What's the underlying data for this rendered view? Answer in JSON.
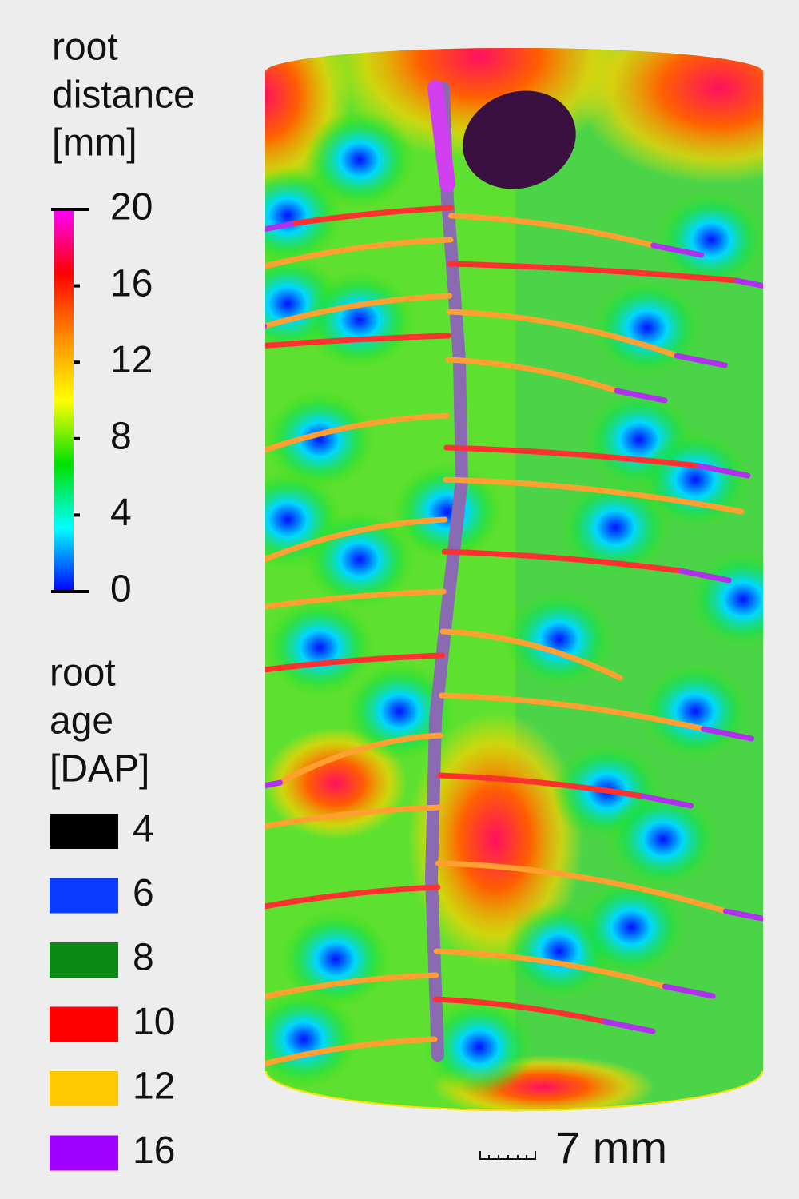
{
  "colorbar": {
    "title": [
      "root",
      "distance",
      "[mm]"
    ],
    "range": [
      0,
      20
    ],
    "ticks": [
      0,
      4,
      8,
      12,
      16,
      20
    ],
    "colormap": [
      "#0000ff",
      "#00ffff",
      "#00e000",
      "#ffff00",
      "#ff8c00",
      "#ff0000",
      "#ff00ff"
    ]
  },
  "age_legend": {
    "title": [
      "root",
      "age",
      "[DAP]"
    ],
    "items": [
      {
        "label": 4,
        "color": "#000000"
      },
      {
        "label": 6,
        "color": "#0a3cff"
      },
      {
        "label": 8,
        "color": "#0a8a14"
      },
      {
        "label": 10,
        "color": "#ff0000"
      },
      {
        "label": 12,
        "color": "#ffc800"
      },
      {
        "label": 16,
        "color": "#a000ff"
      }
    ]
  },
  "scale_bar": {
    "label": "7 mm"
  }
}
